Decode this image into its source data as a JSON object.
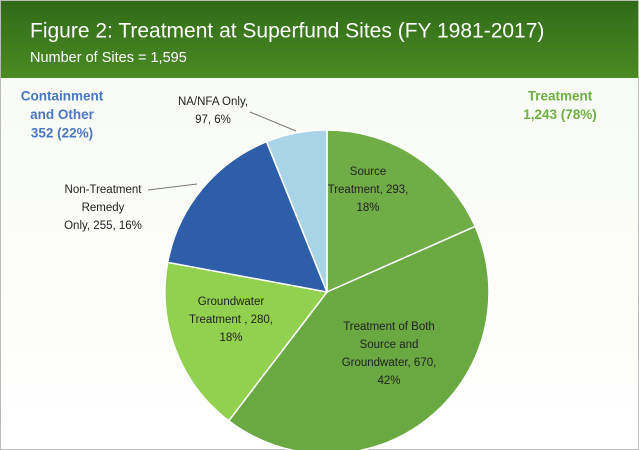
{
  "chart_data": {
    "type": "pie",
    "title": "Figure 2: Treatment at Superfund Sites  (FY 1981-2017)",
    "subtitle": "Number of Sites = 1,595",
    "values": [
      293,
      670,
      280,
      255,
      97
    ],
    "value_labels": [
      [
        "Source",
        "Treatment, 293,",
        "18%"
      ],
      [
        "Treatment of Both",
        "Source and",
        "Groundwater, 670,",
        "42%"
      ],
      [
        "Groundwater",
        "Treatment , 280,",
        "18%"
      ],
      [
        "Non-Treatment",
        "Remedy",
        "Only, 255, 16%"
      ],
      [
        "NA/NFA Only,",
        "97, 6%"
      ]
    ],
    "colors": [
      "#70ad47",
      "#6aa842",
      "#92d050",
      "#2f5ea9",
      "#a9d3e6"
    ],
    "annotations": [
      {
        "lines": [
          "Containment",
          "and Other",
          "352 (22%)"
        ],
        "color": "#4a78c2"
      },
      {
        "lines": [
          "Treatment",
          "1,243 (78%)"
        ],
        "color": "#6fb043"
      }
    ]
  }
}
